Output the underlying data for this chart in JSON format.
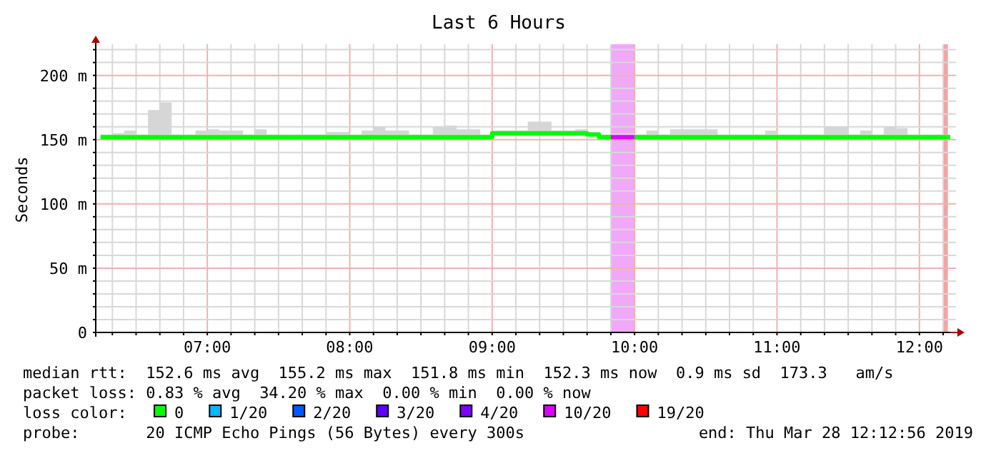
{
  "chart_data": {
    "type": "step",
    "title": "Last 6 Hours",
    "ylabel": "Seconds",
    "legend_title": "loss color:",
    "legend": "bottom",
    "grid": true,
    "xlim": [
      "2019-03-28T06:13",
      "2019-03-28T12:13"
    ],
    "xticks": [
      {
        "value": "2019-03-28T06:20",
        "label": null
      },
      {
        "value": "2019-03-28T06:30",
        "label": null
      },
      {
        "value": "2019-03-28T06:40",
        "label": null
      },
      {
        "value": "2019-03-28T06:50",
        "label": null
      },
      {
        "value": "2019-03-28T07:00",
        "label": "07:00"
      },
      {
        "value": "2019-03-28T07:10",
        "label": null
      },
      {
        "value": "2019-03-28T07:20",
        "label": null
      },
      {
        "value": "2019-03-28T07:30",
        "label": null
      },
      {
        "value": "2019-03-28T07:40",
        "label": null
      },
      {
        "value": "2019-03-28T07:50",
        "label": null
      },
      {
        "value": "2019-03-28T08:00",
        "label": "08:00"
      },
      {
        "value": "2019-03-28T08:10",
        "label": null
      },
      {
        "value": "2019-03-28T08:20",
        "label": null
      },
      {
        "value": "2019-03-28T08:30",
        "label": null
      },
      {
        "value": "2019-03-28T08:40",
        "label": null
      },
      {
        "value": "2019-03-28T08:50",
        "label": null
      },
      {
        "value": "2019-03-28T09:00",
        "label": "09:00"
      },
      {
        "value": "2019-03-28T09:10",
        "label": null
      },
      {
        "value": "2019-03-28T09:20",
        "label": null
      },
      {
        "value": "2019-03-28T09:30",
        "label": null
      },
      {
        "value": "2019-03-28T09:40",
        "label": null
      },
      {
        "value": "2019-03-28T09:50",
        "label": null
      },
      {
        "value": "2019-03-28T10:00",
        "label": "10:00"
      },
      {
        "value": "2019-03-28T10:10",
        "label": null
      },
      {
        "value": "2019-03-28T10:20",
        "label": null
      },
      {
        "value": "2019-03-28T10:30",
        "label": null
      },
      {
        "value": "2019-03-28T10:40",
        "label": null
      },
      {
        "value": "2019-03-28T10:50",
        "label": null
      },
      {
        "value": "2019-03-28T11:00",
        "label": "11:00"
      },
      {
        "value": "2019-03-28T11:10",
        "label": null
      },
      {
        "value": "2019-03-28T11:20",
        "label": null
      },
      {
        "value": "2019-03-28T11:30",
        "label": null
      },
      {
        "value": "2019-03-28T11:40",
        "label": null
      },
      {
        "value": "2019-03-28T11:50",
        "label": null
      },
      {
        "value": "2019-03-28T12:00",
        "label": "12:00"
      },
      {
        "value": "2019-03-28T12:10",
        "label": null
      }
    ],
    "ylim": [
      0,
      222
    ],
    "yticks": [
      0,
      {
        "value": 10,
        "label": null
      },
      {
        "value": 20,
        "label": null
      },
      {
        "value": 30,
        "label": null
      },
      {
        "value": 40,
        "label": null
      },
      {
        "value": 50,
        "label": "50 m"
      },
      {
        "value": 60,
        "label": null
      },
      {
        "value": 70,
        "label": null
      },
      {
        "value": 80,
        "label": null
      },
      {
        "value": 90,
        "label": null
      },
      {
        "value": 100,
        "label": "100 m"
      },
      {
        "value": 110,
        "label": null
      },
      {
        "value": 120,
        "label": null
      },
      {
        "value": 130,
        "label": null
      },
      {
        "value": 140,
        "label": null
      },
      {
        "value": 150,
        "label": "150 m"
      },
      {
        "value": 160,
        "label": null
      },
      {
        "value": 170,
        "label": null
      },
      {
        "value": 180,
        "label": null
      },
      {
        "value": 190,
        "label": null
      },
      {
        "value": 200,
        "label": "200 m"
      },
      {
        "value": 210,
        "label": null
      },
      {
        "value": 220,
        "label": null
      }
    ],
    "bands": [
      {
        "axis": "x",
        "from": "2019-03-28T09:50",
        "to": "2019-03-28T10:00",
        "color": "#f0a8f8"
      },
      {
        "axis": "x",
        "from": "2019-03-28T12:10",
        "to": "2019-03-28T12:12",
        "color": "#f4a4a4"
      }
    ],
    "series": [
      {
        "name": "0",
        "color": "#00ff00",
        "x": [
          "2019-03-28T06:15",
          "2019-03-28T06:20",
          "2019-03-28T06:25",
          "2019-03-28T06:30",
          "2019-03-28T06:35",
          "2019-03-28T06:40",
          "2019-03-28T06:45",
          "2019-03-28T06:50",
          "2019-03-28T06:55",
          "2019-03-28T07:00",
          "2019-03-28T07:05",
          "2019-03-28T07:10",
          "2019-03-28T07:15",
          "2019-03-28T07:20",
          "2019-03-28T07:25",
          "2019-03-28T07:30",
          "2019-03-28T07:35",
          "2019-03-28T07:40",
          "2019-03-28T07:45",
          "2019-03-28T07:50",
          "2019-03-28T07:55",
          "2019-03-28T08:00",
          "2019-03-28T08:05",
          "2019-03-28T08:10",
          "2019-03-28T08:15",
          "2019-03-28T08:20",
          "2019-03-28T08:25",
          "2019-03-28T08:30",
          "2019-03-28T08:35",
          "2019-03-28T08:40",
          "2019-03-28T08:45",
          "2019-03-28T08:50",
          "2019-03-28T08:55",
          "2019-03-28T09:00",
          "2019-03-28T09:05",
          "2019-03-28T09:10",
          "2019-03-28T09:15",
          "2019-03-28T09:20",
          "2019-03-28T09:25",
          "2019-03-28T09:30",
          "2019-03-28T09:35",
          "2019-03-28T09:40",
          "2019-03-28T09:45",
          "2019-03-28T09:50",
          "2019-03-28T09:55",
          "2019-03-28T10:00",
          "2019-03-28T10:05",
          "2019-03-28T10:10",
          "2019-03-28T10:15",
          "2019-03-28T10:20",
          "2019-03-28T10:25",
          "2019-03-28T10:30",
          "2019-03-28T10:35",
          "2019-03-28T10:40",
          "2019-03-28T10:45",
          "2019-03-28T10:50",
          "2019-03-28T10:55",
          "2019-03-28T11:00",
          "2019-03-28T11:05",
          "2019-03-28T11:10",
          "2019-03-28T11:15",
          "2019-03-28T11:20",
          "2019-03-28T11:25",
          "2019-03-28T11:30",
          "2019-03-28T11:35",
          "2019-03-28T11:40",
          "2019-03-28T11:45",
          "2019-03-28T11:50",
          "2019-03-28T11:55",
          "2019-03-28T12:00",
          "2019-03-28T12:05",
          "2019-03-28T12:10"
        ],
        "values": [
          152,
          152,
          152,
          152,
          152,
          152,
          152,
          152,
          152,
          152,
          152,
          152,
          152,
          152,
          152,
          152,
          152,
          152,
          152,
          152,
          152,
          152,
          152,
          152,
          152,
          152,
          152,
          152,
          152,
          152,
          152,
          152,
          152,
          155,
          155,
          155,
          155,
          155,
          155,
          155,
          155,
          154,
          152,
          null,
          null,
          152,
          152,
          152,
          152,
          152,
          152,
          152,
          152,
          152,
          152,
          152,
          152,
          152,
          152,
          152,
          152,
          152,
          152,
          152,
          152,
          152,
          152,
          152,
          152,
          152,
          152,
          152
        ],
        "lower": [
          151,
          151,
          151,
          151,
          151,
          151,
          151,
          151,
          151,
          151,
          151,
          151,
          151,
          151,
          151,
          151,
          151,
          151,
          151,
          151,
          151,
          151,
          151,
          151,
          151,
          151,
          151,
          151,
          151,
          151,
          151,
          151,
          151,
          153,
          153,
          153,
          153,
          153,
          153,
          153,
          153,
          153,
          151,
          151,
          151,
          151,
          151,
          151,
          151,
          151,
          151,
          151,
          151,
          151,
          151,
          151,
          151,
          151,
          151,
          151,
          151,
          151,
          151,
          151,
          151,
          151,
          151,
          151,
          151,
          151,
          151,
          151
        ],
        "upper": [
          154,
          155,
          157,
          154,
          173,
          179,
          154,
          154,
          157,
          158,
          157,
          157,
          154,
          158,
          154,
          154,
          154,
          154,
          154,
          156,
          156,
          154,
          157,
          160,
          157,
          157,
          154,
          154,
          160,
          161,
          158,
          158,
          154,
          157,
          157,
          157,
          164,
          164,
          157,
          157,
          158,
          156,
          154,
          155,
          155,
          154,
          157,
          154,
          158,
          158,
          158,
          158,
          154,
          154,
          154,
          154,
          157,
          154,
          154,
          154,
          154,
          160,
          160,
          154,
          157,
          154,
          160,
          159,
          154,
          154,
          154,
          154
        ]
      },
      {
        "name": "1/20",
        "color": "#00b8ff"
      },
      {
        "name": "2/20",
        "color": "#0059ff"
      },
      {
        "name": "3/20",
        "color": "#5e00ff"
      },
      {
        "name": "4/20",
        "color": "#7e00ff"
      },
      {
        "name": "10/20",
        "color": "#dd00ff",
        "x": [
          "2019-03-28T09:50",
          "2019-03-28T10:00"
        ],
        "values": [
          152,
          152
        ]
      },
      {
        "name": "19/20",
        "color": "#ff0000"
      }
    ],
    "annotations": [
      "median rtt:  152.6 ms avg  155.2 ms max  151.8 ms min  152.3 ms now  0.9 ms sd  173.3   am/s",
      "packet loss: 0.83 % avg  34.20 % max  0.00 % min  0.00 % now",
      "probe:       20 ICMP Echo Pings (56 Bytes) every 300s",
      "end: Thu Mar 28 12:12:56 2019"
    ]
  }
}
